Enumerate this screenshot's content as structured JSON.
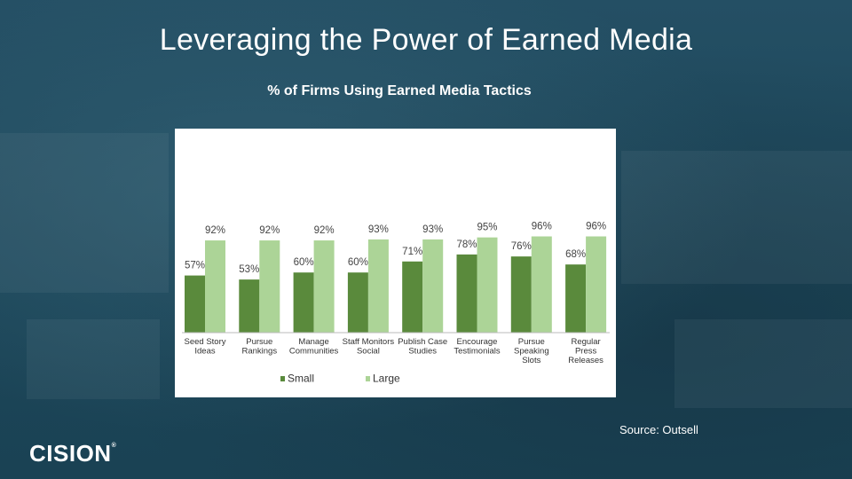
{
  "slide": {
    "title": "Leveraging the Power of Earned Media",
    "source": "Source:  Outsell",
    "logo": "CISION",
    "logo_mark": "®"
  },
  "chart_data": {
    "type": "bar",
    "title": "% of Firms Using Earned Media Tactics",
    "categories": [
      [
        "Seed Story",
        "Ideas"
      ],
      [
        "Pursue",
        "Rankings"
      ],
      [
        "Manage",
        "Communities"
      ],
      [
        "Staff Monitors",
        "Social"
      ],
      [
        "Publish Case",
        "Studies"
      ],
      [
        "Encourage",
        "Testimonials"
      ],
      [
        "Pursue",
        "Speaking",
        "Slots"
      ],
      [
        "Regular",
        "Press",
        "Releases"
      ]
    ],
    "series": [
      {
        "name": "Small",
        "color": "#5a8a3c",
        "values": [
          57,
          53,
          60,
          60,
          71,
          78,
          76,
          68
        ],
        "labels": [
          "57%",
          "53%",
          "60%",
          "60%",
          "71%",
          "78%",
          "76%",
          "68%"
        ]
      },
      {
        "name": "Large",
        "color": "#acd497",
        "values": [
          92,
          92,
          92,
          93,
          93,
          95,
          96,
          96
        ],
        "labels": [
          "92%",
          "92%",
          "92%",
          "93%",
          "93%",
          "95%",
          "96%",
          "96%"
        ]
      }
    ],
    "ylim": [
      0,
      100
    ],
    "grid": false,
    "legend_position": "bottom"
  }
}
